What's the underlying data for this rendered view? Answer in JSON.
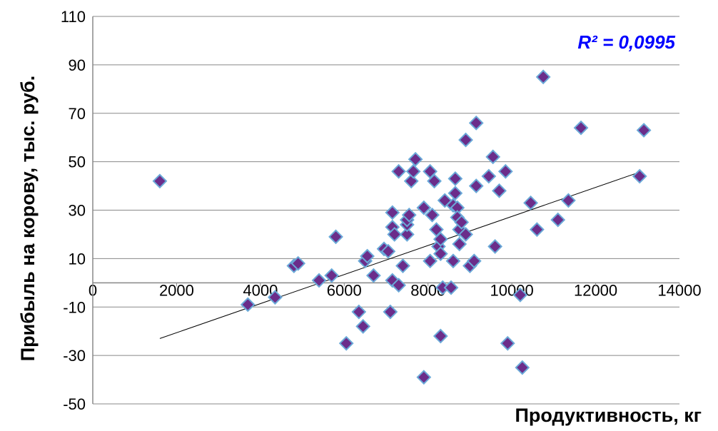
{
  "chart_data": {
    "type": "scatter",
    "xlabel": "Продуктивность, кг",
    "ylabel": "Прибыль на корову, тыс. руб.",
    "xlim": [
      0,
      14000
    ],
    "ylim": [
      -50,
      110
    ],
    "x_ticks": [
      0,
      2000,
      4000,
      6000,
      8000,
      10000,
      12000,
      14000
    ],
    "y_ticks": [
      -50,
      -30,
      -10,
      10,
      30,
      50,
      70,
      90,
      110
    ],
    "x_tick_labels": [
      "0",
      "2000",
      "4000",
      "6000",
      "8000",
      "10000",
      "12000",
      "14000"
    ],
    "y_tick_labels": [
      "-50",
      "-30",
      "-10",
      "10",
      "30",
      "50",
      "70",
      "90",
      "110"
    ],
    "grid": "horizontal",
    "annotation": "R² = 0,0995",
    "colors": {
      "marker_fill": "#6b2d8a",
      "marker_edge": "#6aa9d8",
      "annotation": "#0000ff",
      "trendline": "#000000",
      "grid": "#888888"
    },
    "trendline": {
      "type": "linear",
      "points": [
        [
          1600,
          -23
        ],
        [
          13100,
          46
        ]
      ]
    },
    "series": [
      {
        "points": [
          [
            1600,
            42
          ],
          [
            3700,
            -9
          ],
          [
            4350,
            -6
          ],
          [
            4800,
            7
          ],
          [
            4900,
            8
          ],
          [
            5400,
            1
          ],
          [
            5700,
            3
          ],
          [
            5800,
            19
          ],
          [
            6050,
            -25
          ],
          [
            6350,
            -12
          ],
          [
            6450,
            -18
          ],
          [
            6500,
            9
          ],
          [
            6550,
            11
          ],
          [
            6700,
            3
          ],
          [
            6950,
            14
          ],
          [
            7050,
            13
          ],
          [
            7100,
            -12
          ],
          [
            7150,
            29
          ],
          [
            7150,
            23
          ],
          [
            7150,
            1
          ],
          [
            7200,
            20
          ],
          [
            7300,
            -1
          ],
          [
            7300,
            46
          ],
          [
            7400,
            7
          ],
          [
            7500,
            20
          ],
          [
            7500,
            24
          ],
          [
            7500,
            26
          ],
          [
            7550,
            28
          ],
          [
            7600,
            42
          ],
          [
            7650,
            46
          ],
          [
            7700,
            51
          ],
          [
            7900,
            31
          ],
          [
            7900,
            -39
          ],
          [
            8050,
            9
          ],
          [
            8050,
            46
          ],
          [
            8100,
            28
          ],
          [
            8150,
            42
          ],
          [
            8200,
            22
          ],
          [
            8250,
            15
          ],
          [
            8300,
            18
          ],
          [
            8300,
            12
          ],
          [
            8300,
            -22
          ],
          [
            8350,
            -2
          ],
          [
            8400,
            34
          ],
          [
            8550,
            -2
          ],
          [
            8600,
            9
          ],
          [
            8600,
            32
          ],
          [
            8650,
            43
          ],
          [
            8650,
            37
          ],
          [
            8700,
            31
          ],
          [
            8700,
            27
          ],
          [
            8750,
            16
          ],
          [
            8750,
            22
          ],
          [
            8800,
            25
          ],
          [
            8900,
            20
          ],
          [
            8900,
            59
          ],
          [
            9000,
            7
          ],
          [
            9100,
            9
          ],
          [
            9150,
            66
          ],
          [
            9150,
            40
          ],
          [
            9450,
            44
          ],
          [
            9550,
            52
          ],
          [
            9600,
            15
          ],
          [
            9700,
            38
          ],
          [
            9850,
            46
          ],
          [
            9900,
            -25
          ],
          [
            10200,
            -5
          ],
          [
            10250,
            -35
          ],
          [
            10450,
            33
          ],
          [
            10600,
            22
          ],
          [
            10750,
            85
          ],
          [
            11100,
            26
          ],
          [
            11350,
            34
          ],
          [
            11650,
            64
          ],
          [
            13050,
            44
          ],
          [
            13150,
            63
          ]
        ]
      }
    ]
  }
}
